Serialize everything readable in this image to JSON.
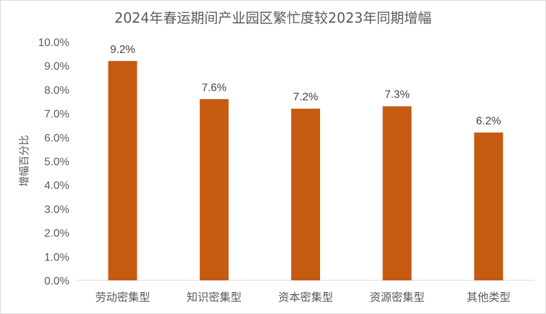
{
  "chart_data": {
    "type": "bar",
    "title": "2024年春运期间产业园区繁忙度较2023年同期增幅",
    "xlabel": "",
    "ylabel": "增幅百分比",
    "categories": [
      "劳动密集型",
      "知识密集型",
      "资本密集型",
      "资源密集型",
      "其他类型"
    ],
    "values": [
      9.2,
      7.6,
      7.2,
      7.3,
      6.2
    ],
    "data_labels": [
      "9.2%",
      "7.6%",
      "7.2%",
      "7.3%",
      "6.2%"
    ],
    "ylim": [
      0,
      10
    ],
    "yticks": [
      "0.0%",
      "1.0%",
      "2.0%",
      "3.0%",
      "4.0%",
      "5.0%",
      "6.0%",
      "7.0%",
      "8.0%",
      "9.0%",
      "10.0%"
    ],
    "grid": false,
    "legend": "none",
    "bar_color": "#c55a11"
  }
}
